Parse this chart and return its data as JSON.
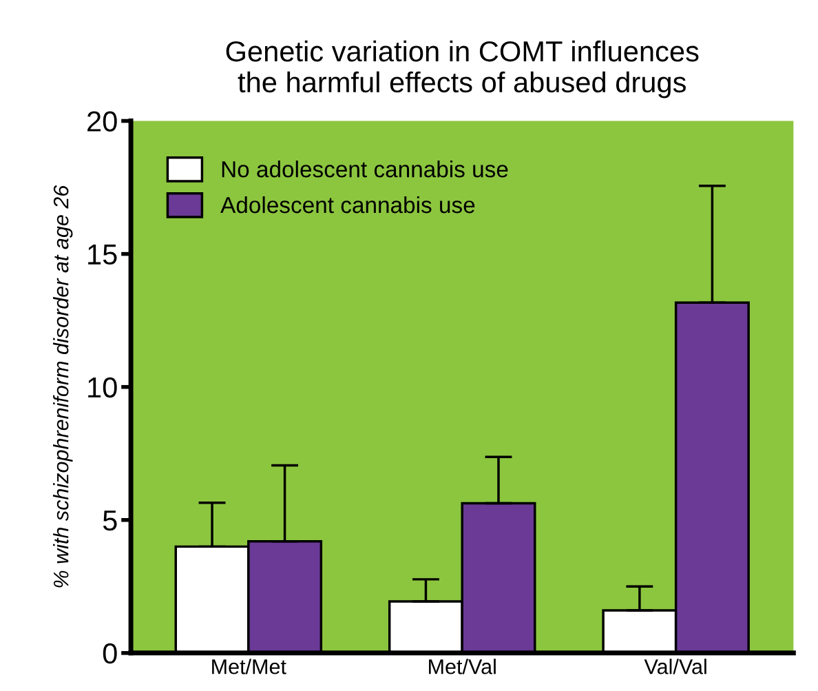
{
  "chart_data": {
    "type": "bar",
    "title": "Genetic variation in COMT influences\nthe harmful effects of abused drugs",
    "ylabel": "% with schizophreniform disorder at age 26",
    "categories": [
      "Met/Met",
      "Met/Val",
      "Val/Val"
    ],
    "series": [
      {
        "name": "No adolescent cannabis use",
        "color": "#ffffff",
        "values": [
          4.0,
          1.94,
          1.6
        ],
        "errors": [
          [
            4.0,
            5.65
          ],
          [
            1.94,
            2.77
          ],
          [
            1.6,
            2.5
          ]
        ]
      },
      {
        "name": "Adolescent cannabis use",
        "color": "#6a3a96",
        "values": [
          4.2,
          5.63,
          13.17
        ],
        "errors": [
          [
            4.2,
            7.05
          ],
          [
            5.63,
            7.37
          ],
          [
            13.17,
            17.56
          ]
        ]
      }
    ],
    "ylim": [
      0,
      20
    ],
    "yticks": [
      0,
      5,
      10,
      15,
      20
    ],
    "grid": false,
    "legend": "top left"
  }
}
